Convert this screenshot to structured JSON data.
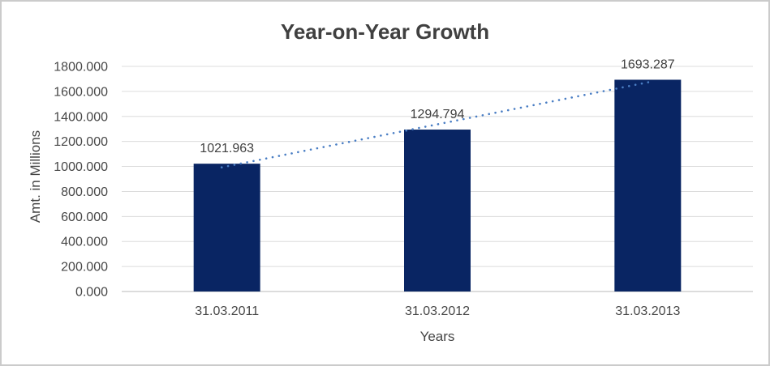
{
  "window": {
    "background": "#ffffff",
    "frame_border_color": "#cbcbcb"
  },
  "chart_data": {
    "type": "bar",
    "title": "Year-on-Year Growth",
    "categories": [
      "31.03.2011",
      "31.03.2012",
      "31.03.2013"
    ],
    "values": [
      1021.963,
      1294.794,
      1693.287
    ],
    "data_labels": [
      "1021.963",
      "1294.794",
      "1693.287"
    ],
    "xlabel": "Years",
    "ylabel": "Amt. in Millions",
    "ylim": [
      0,
      1800
    ],
    "ytick_step": 200,
    "ytick_labels": [
      "0.000",
      "200.000",
      "400.000",
      "600.000",
      "800.000",
      "1000.000",
      "1200.000",
      "1400.000",
      "1600.000",
      "1800.000"
    ],
    "grid": true,
    "legend": "none",
    "trendline": {
      "type": "linear",
      "style": "dotted"
    },
    "colors": {
      "bar": "#092563",
      "trendline": "#4a7ec4",
      "gridline": "#dcdcdc",
      "axis_line": "#c6c6c6",
      "title_text": "#404040",
      "tick_text": "#474747",
      "data_label_text": "#404040",
      "axis_title_text": "#454545"
    }
  }
}
